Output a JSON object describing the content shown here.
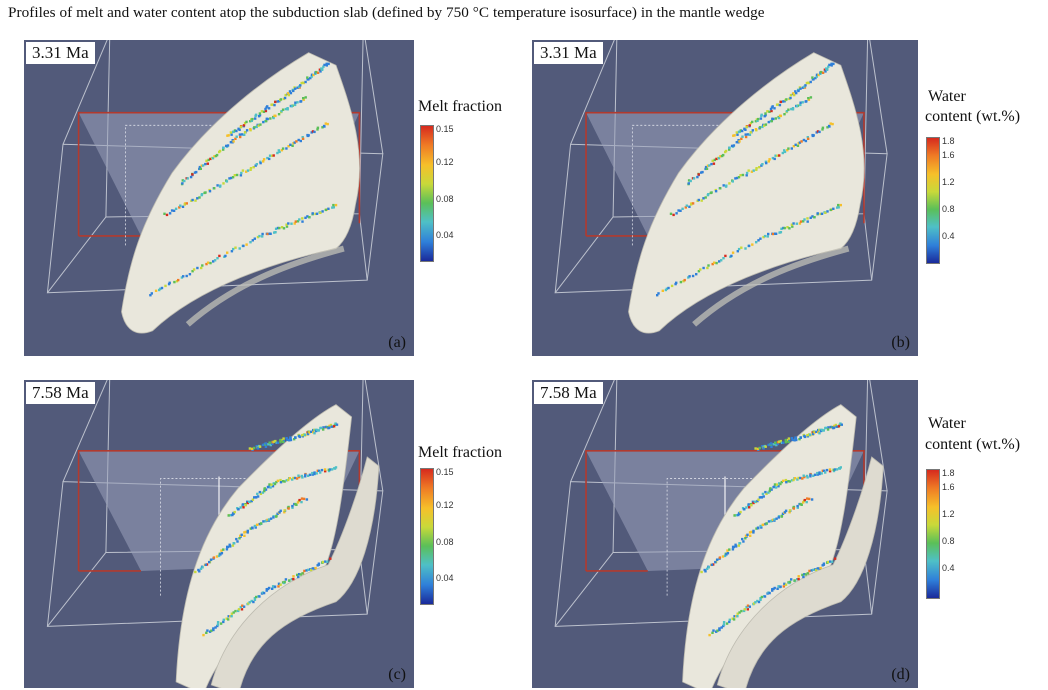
{
  "title": "Profiles of melt and water content atop the subduction slab (defined by 750 °C temperature isosurface) in the mantle wedge",
  "colors": {
    "panel_bg": "#525a7a",
    "slab": "#e9e7dc",
    "box_line": "#cfd3dc",
    "red_frame": "#b23a2e",
    "cmap": [
      "#1a2a9a",
      "#2f7fd9",
      "#4fc0c6",
      "#5bbf58",
      "#c8d93a",
      "#f6c02a",
      "#ef7a25",
      "#d62a1e"
    ]
  },
  "panels": [
    {
      "id": "a",
      "time": "3.31 Ma",
      "letter": "(a)",
      "variable": "melt"
    },
    {
      "id": "b",
      "time": "3.31 Ma",
      "letter": "(b)",
      "variable": "water"
    },
    {
      "id": "c",
      "time": "7.58 Ma",
      "letter": "(c)",
      "variable": "melt"
    },
    {
      "id": "d",
      "time": "7.58 Ma",
      "letter": "(d)",
      "variable": "water"
    }
  ],
  "colorbars": {
    "melt": {
      "title": "Melt fraction",
      "ticks": [
        "0.15",
        "0.12",
        "0.08",
        "0.04"
      ]
    },
    "water": {
      "title_line1": "Water",
      "title_line2": "content (wt.%)",
      "ticks": [
        "1.8",
        "1.6",
        "1.2",
        "0.8",
        "0.4"
      ]
    }
  }
}
